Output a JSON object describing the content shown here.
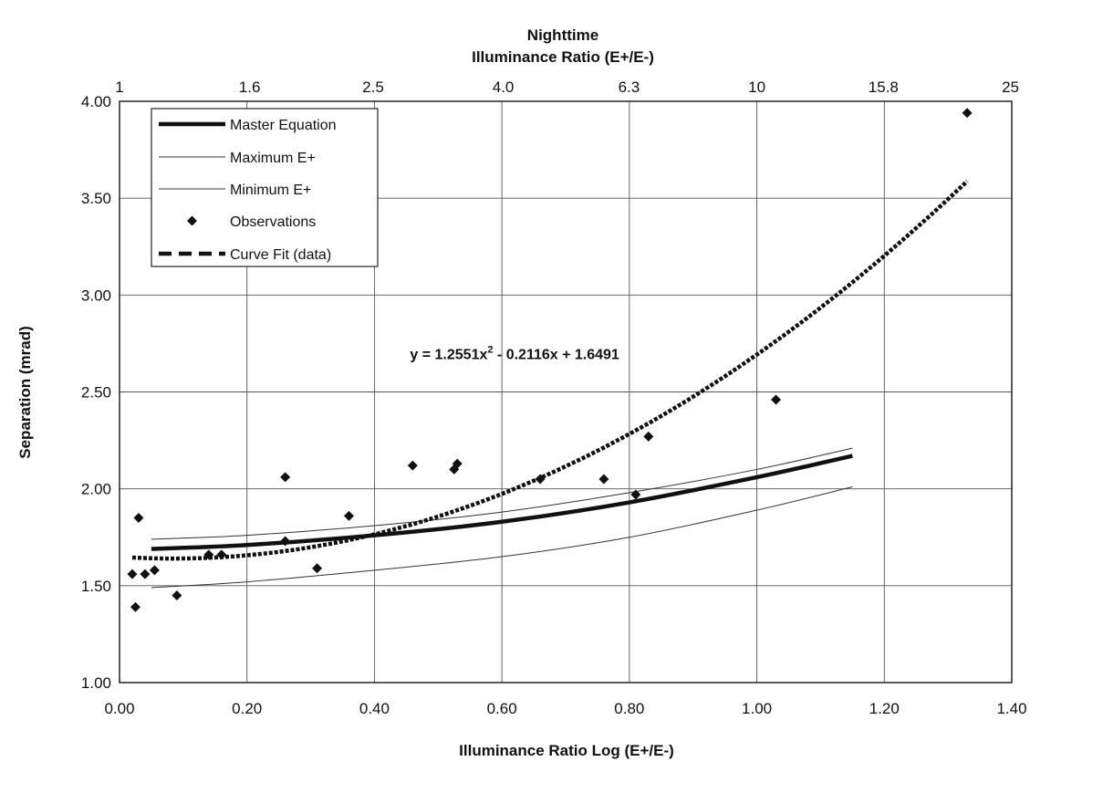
{
  "chart_data": {
    "type": "scatter",
    "title": "Nighttime",
    "top_axis_label": "Illuminance Ratio (E+/E-)",
    "top_ticks": [
      "1",
      "1.6",
      "2.5",
      "4.0",
      "6.3",
      "10",
      "15.8",
      "25"
    ],
    "xlabel": "Illuminance Ratio Log (E+/E-)",
    "ylabel": "Separation (mrad)",
    "xlim": [
      0,
      1.4
    ],
    "ylim": [
      1.0,
      4.0
    ],
    "x_ticks": [
      "0.00",
      "0.20",
      "0.40",
      "0.60",
      "0.80",
      "1.00",
      "1.20",
      "1.40"
    ],
    "y_ticks": [
      "1.00",
      "1.50",
      "2.00",
      "2.50",
      "3.00",
      "3.50",
      "4.00"
    ],
    "grid": true,
    "legend_position": "top-left",
    "series": [
      {
        "name": "Master Equation",
        "style": "thick-line",
        "x": [
          0.05,
          0.2,
          0.4,
          0.6,
          0.8,
          1.0,
          1.15
        ],
        "y": [
          1.69,
          1.71,
          1.76,
          1.83,
          1.93,
          2.06,
          2.17
        ]
      },
      {
        "name": "Maximum E+",
        "style": "thin-line",
        "x": [
          0.05,
          0.2,
          0.4,
          0.6,
          0.8,
          1.0,
          1.15
        ],
        "y": [
          1.74,
          1.76,
          1.81,
          1.88,
          1.98,
          2.1,
          2.21
        ]
      },
      {
        "name": "Minimum E+",
        "style": "thin-line",
        "x": [
          0.05,
          0.2,
          0.4,
          0.6,
          0.8,
          1.0,
          1.15
        ],
        "y": [
          1.49,
          1.52,
          1.58,
          1.65,
          1.75,
          1.89,
          2.01
        ]
      },
      {
        "name": "Observations",
        "style": "diamond",
        "x": [
          0.02,
          0.025,
          0.03,
          0.04,
          0.055,
          0.09,
          0.14,
          0.16,
          0.26,
          0.26,
          0.31,
          0.36,
          0.46,
          0.525,
          0.53,
          0.66,
          0.76,
          0.81,
          0.83,
          1.03,
          1.33
        ],
        "y": [
          1.56,
          1.39,
          1.85,
          1.56,
          1.58,
          1.45,
          1.66,
          1.66,
          2.06,
          1.73,
          1.59,
          1.86,
          2.12,
          2.1,
          2.13,
          2.05,
          2.05,
          1.97,
          2.27,
          2.46,
          3.94
        ]
      },
      {
        "name": "Curve Fit (data)",
        "style": "dashed-line",
        "equation": {
          "a": 1.2551,
          "b": -0.2116,
          "c": 1.6491
        },
        "x_range": [
          0.02,
          1.33
        ]
      }
    ],
    "annotation": {
      "pre": "y = 1.2551x",
      "sup": "2",
      "post": " - 0.2116x + 1.6491",
      "x": 0.62,
      "y": 2.67
    }
  }
}
